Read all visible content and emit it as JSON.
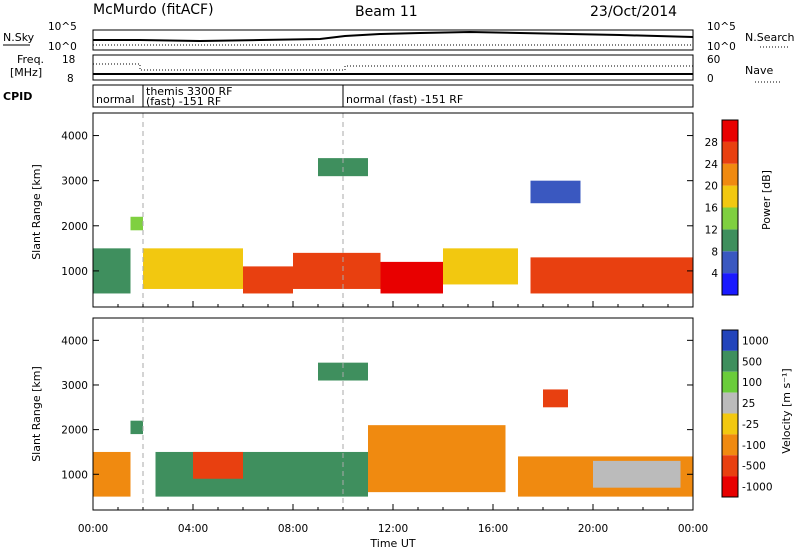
{
  "header": {
    "station": "McMurdo (fitACF)",
    "beam": "Beam 11",
    "date": "23/Oct/2014"
  },
  "top_panels": {
    "nsky_label": "N.Sky",
    "nsearch_label": "N.Search",
    "nsky_ticks": [
      "10^5",
      "10^0"
    ],
    "nsearch_ticks": [
      "10^5",
      "10^0"
    ],
    "freq_label_1": "Freq.",
    "freq_label_2": "[MHz]",
    "freq_ticks": [
      "18",
      "8"
    ],
    "nave_label": "Nave",
    "nave_ticks": [
      "60",
      "0"
    ],
    "cpid_label": "CPID",
    "cpid_segments": [
      {
        "label_1": "normal",
        "label_2": "",
        "start_hour": 0.0,
        "end_hour": 2.0
      },
      {
        "label_1": "themis 3300 RF",
        "label_2": "(fast) -151 RF",
        "start_hour": 2.0,
        "end_hour": 10.0
      },
      {
        "label_1": "normal (fast) -151 RF",
        "label_2": "",
        "start_hour": 10.0,
        "end_hour": 24.0
      }
    ]
  },
  "colorbars": {
    "power": {
      "label": "Power [dB]",
      "ticks": [
        "4",
        "8",
        "12",
        "16",
        "20",
        "24",
        "28"
      ],
      "colors": [
        "#1a1aff",
        "#3a58c0",
        "#3f8f5e",
        "#7fd040",
        "#f2c810",
        "#f08a10",
        "#e84010",
        "#e80000"
      ]
    },
    "velocity": {
      "label": "Velocity [m s⁻¹]",
      "ticks": [
        "1000",
        "500",
        "100",
        "25",
        "-25",
        "-100",
        "-500",
        "-1000"
      ],
      "colors": [
        "#2244bb",
        "#3f8f5e",
        "#6acc3a",
        "#bbbbbb",
        "#f2c810",
        "#f08a10",
        "#e84010",
        "#e80000"
      ]
    }
  },
  "chart_data": [
    {
      "type": "heatmap",
      "name": "power",
      "ylabel": "Slant Range [km]",
      "xlabel": "",
      "xlim": [
        0,
        24
      ],
      "ylim": [
        200,
        4500
      ],
      "yticks": [
        "1000",
        "2000",
        "3000",
        "4000"
      ],
      "xticks": [
        "00:00",
        "04:00",
        "08:00",
        "12:00",
        "16:00",
        "20:00",
        "00:00"
      ],
      "regions": [
        {
          "t0": 0.0,
          "t1": 1.5,
          "r0": 500,
          "r1": 1500,
          "value": 10
        },
        {
          "t0": 1.5,
          "t1": 2.0,
          "r0": 1900,
          "r1": 2200,
          "value": 14
        },
        {
          "t0": 2.0,
          "t1": 6.0,
          "r0": 600,
          "r1": 1500,
          "value": 18
        },
        {
          "t0": 6.0,
          "t1": 8.0,
          "r0": 500,
          "r1": 1100,
          "value": 26
        },
        {
          "t0": 8.0,
          "t1": 11.5,
          "r0": 600,
          "r1": 1400,
          "value": 24
        },
        {
          "t0": 11.5,
          "t1": 14.0,
          "r0": 500,
          "r1": 1200,
          "value": 29
        },
        {
          "t0": 14.0,
          "t1": 17.0,
          "r0": 700,
          "r1": 1500,
          "value": 16
        },
        {
          "t0": 17.5,
          "t1": 24.0,
          "r0": 500,
          "r1": 1300,
          "value": 27
        },
        {
          "t0": 9.0,
          "t1": 11.0,
          "r0": 3100,
          "r1": 3500,
          "value": 8
        },
        {
          "t0": 17.5,
          "t1": 19.5,
          "r0": 2500,
          "r1": 3000,
          "value": 6
        }
      ]
    },
    {
      "type": "heatmap",
      "name": "velocity",
      "ylabel": "Slant Range [km]",
      "xlabel": "Time UT",
      "xlim": [
        0,
        24
      ],
      "ylim": [
        200,
        4500
      ],
      "yticks": [
        "1000",
        "2000",
        "3000",
        "4000"
      ],
      "xticks": [
        "00:00",
        "04:00",
        "08:00",
        "12:00",
        "16:00",
        "20:00",
        "00:00"
      ],
      "regions": [
        {
          "t0": 0.0,
          "t1": 1.5,
          "r0": 500,
          "r1": 1500,
          "value": -100
        },
        {
          "t0": 1.5,
          "t1": 2.0,
          "r0": 1900,
          "r1": 2200,
          "value": 500
        },
        {
          "t0": 2.5,
          "t1": 11.0,
          "r0": 500,
          "r1": 1500,
          "value": 500
        },
        {
          "t0": 4.0,
          "t1": 6.0,
          "r0": 900,
          "r1": 1500,
          "value": -500
        },
        {
          "t0": 11.0,
          "t1": 16.5,
          "r0": 600,
          "r1": 2100,
          "value": -100
        },
        {
          "t0": 17.0,
          "t1": 24.0,
          "r0": 500,
          "r1": 1400,
          "value": -100
        },
        {
          "t0": 20.0,
          "t1": 23.5,
          "r0": 700,
          "r1": 1300,
          "value": 25
        },
        {
          "t0": 9.0,
          "t1": 11.0,
          "r0": 3100,
          "r1": 3500,
          "value": 500
        },
        {
          "t0": 18.0,
          "t1": 19.0,
          "r0": 2500,
          "r1": 2900,
          "value": -500
        }
      ]
    }
  ]
}
